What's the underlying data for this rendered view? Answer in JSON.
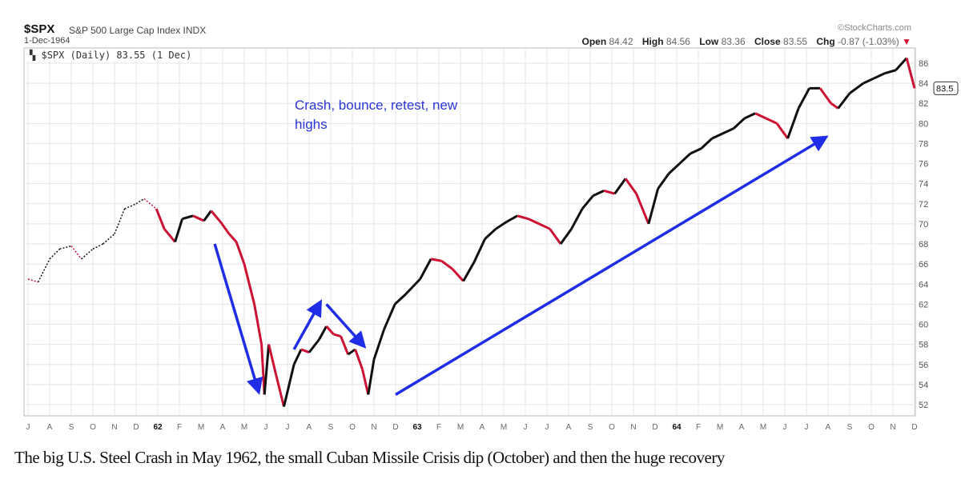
{
  "header": {
    "symbol": "$SPX",
    "name": "S&P 500 Large Cap Index  INDX",
    "date": "1-Dec-1964",
    "brand": "©StockCharts.com",
    "open_label": "Open",
    "open": "84.42",
    "high_label": "High",
    "high": "84.56",
    "low_label": "Low",
    "low": "83.36",
    "close_label": "Close",
    "close": "83.55",
    "chg_label": "Chg",
    "chg": "-0.87 (-1.03%)",
    "chg_icon": "triangle-down-icon"
  },
  "legend": "$SPX (Daily) 83.55 (1 Dec)",
  "annotation": "Crash, bounce, retest, new highs",
  "caption": "The big U.S.  Steel Crash in May 1962, the small Cuban Missile Crisis  dip (October)  and then the huge recovery",
  "colors": {
    "up": "#111111",
    "down": "#cc1133",
    "arrow": "#1f2ee6",
    "grid": "#e4e4e4",
    "note": "#2a35d8"
  },
  "chart_data": {
    "type": "line",
    "title": "$SPX S&P 500 Large Cap Index INDX",
    "ylim": [
      51,
      87
    ],
    "y_ticks": [
      52,
      54,
      56,
      58,
      60,
      62,
      64,
      66,
      68,
      70,
      72,
      74,
      76,
      78,
      80,
      82,
      84,
      86
    ],
    "y_axis_side": "right",
    "grid": true,
    "last_value_tag": "83.5",
    "x_tick_labels": [
      "J",
      "A",
      "S",
      "O",
      "N",
      "D",
      "62",
      "F",
      "M",
      "A",
      "M",
      "J",
      "J",
      "A",
      "S",
      "O",
      "N",
      "D",
      "63",
      "F",
      "M",
      "A",
      "M",
      "J",
      "J",
      "A",
      "S",
      "O",
      "N",
      "D",
      "64",
      "F",
      "M",
      "A",
      "M",
      "J",
      "J",
      "A",
      "S",
      "O",
      "N",
      "D"
    ],
    "series": [
      {
        "points": [
          [
            "1961-07-01",
            64.5
          ],
          [
            "1961-07-15",
            64.2
          ],
          [
            "1961-08-01",
            66.5
          ],
          [
            "1961-08-15",
            67.5
          ],
          [
            "1961-09-01",
            67.8
          ],
          [
            "1961-09-15",
            66.5
          ],
          [
            "1961-10-01",
            67.5
          ],
          [
            "1961-10-15",
            68
          ],
          [
            "1961-11-01",
            69
          ],
          [
            "1961-11-15",
            71.5
          ],
          [
            "1961-12-01",
            72
          ],
          [
            "1961-12-12",
            72.5
          ],
          [
            "1961-12-29",
            71.5
          ],
          [
            "1962-01-10",
            69.5
          ],
          [
            "1962-01-25",
            68.2
          ],
          [
            "1962-02-05",
            70.5
          ],
          [
            "1962-02-20",
            70.8
          ],
          [
            "1962-03-05",
            70.3
          ],
          [
            "1962-03-15",
            71.3
          ],
          [
            "1962-03-28",
            70.2
          ],
          [
            "1962-04-10",
            69
          ],
          [
            "1962-04-20",
            68.2
          ],
          [
            "1962-05-01",
            66
          ],
          [
            "1962-05-15",
            62
          ],
          [
            "1962-05-25",
            58
          ],
          [
            "1962-05-29",
            53
          ],
          [
            "1962-06-05",
            58
          ],
          [
            "1962-06-15",
            55
          ],
          [
            "1962-06-26",
            51.8
          ],
          [
            "1962-07-10",
            56
          ],
          [
            "1962-07-20",
            57.5
          ],
          [
            "1962-08-01",
            57.2
          ],
          [
            "1962-08-15",
            58.5
          ],
          [
            "1962-08-25",
            59.8
          ],
          [
            "1962-09-05",
            59
          ],
          [
            "1962-09-15",
            58.8
          ],
          [
            "1962-09-25",
            57
          ],
          [
            "1962-10-05",
            57.5
          ],
          [
            "1962-10-15",
            55.5
          ],
          [
            "1962-10-23",
            53
          ],
          [
            "1962-11-01",
            56.5
          ],
          [
            "1962-11-15",
            59.5
          ],
          [
            "1962-11-30",
            62
          ],
          [
            "1962-12-15",
            63
          ],
          [
            "1963-01-05",
            64.5
          ],
          [
            "1963-01-20",
            66.5
          ],
          [
            "1963-02-05",
            66.3
          ],
          [
            "1963-02-20",
            65.5
          ],
          [
            "1963-03-05",
            64.3
          ],
          [
            "1963-03-20",
            66.2
          ],
          [
            "1963-04-05",
            68.5
          ],
          [
            "1963-04-20",
            69.5
          ],
          [
            "1963-05-05",
            70.2
          ],
          [
            "1963-05-20",
            70.8
          ],
          [
            "1963-06-05",
            70.5
          ],
          [
            "1963-06-20",
            70
          ],
          [
            "1963-07-05",
            69.5
          ],
          [
            "1963-07-20",
            68
          ],
          [
            "1963-08-05",
            69.5
          ],
          [
            "1963-08-20",
            71.5
          ],
          [
            "1963-09-05",
            72.8
          ],
          [
            "1963-09-20",
            73.3
          ],
          [
            "1963-10-05",
            73
          ],
          [
            "1963-10-20",
            74.5
          ],
          [
            "1963-11-05",
            73
          ],
          [
            "1963-11-22",
            70
          ],
          [
            "1963-12-05",
            73.5
          ],
          [
            "1963-12-20",
            75
          ],
          [
            "1964-01-05",
            76
          ],
          [
            "1964-01-20",
            77
          ],
          [
            "1964-02-05",
            77.5
          ],
          [
            "1964-02-20",
            78.5
          ],
          [
            "1964-03-05",
            79
          ],
          [
            "1964-03-20",
            79.5
          ],
          [
            "1964-04-05",
            80.5
          ],
          [
            "1964-04-20",
            81
          ],
          [
            "1964-05-05",
            80.5
          ],
          [
            "1964-05-20",
            80
          ],
          [
            "1964-06-05",
            78.5
          ],
          [
            "1964-06-20",
            81.5
          ],
          [
            "1964-07-05",
            83.5
          ],
          [
            "1964-07-20",
            83.5
          ],
          [
            "1964-08-05",
            82
          ],
          [
            "1964-08-15",
            81.5
          ],
          [
            "1964-09-01",
            83
          ],
          [
            "1964-09-20",
            84
          ],
          [
            "1964-10-05",
            84.5
          ],
          [
            "1964-10-20",
            85
          ],
          [
            "1964-11-05",
            85.3
          ],
          [
            "1964-11-20",
            86.5
          ],
          [
            "1964-12-01",
            83.5
          ]
        ]
      }
    ],
    "annotations": [
      {
        "type": "arrow",
        "from": [
          "1962-03-20",
          68
        ],
        "to": [
          "1962-05-20",
          53.5
        ]
      },
      {
        "type": "arrow",
        "from": [
          "1962-07-10",
          57.5
        ],
        "to": [
          "1962-08-15",
          62
        ]
      },
      {
        "type": "arrow",
        "from": [
          "1962-08-25",
          62
        ],
        "to": [
          "1962-10-15",
          58
        ]
      },
      {
        "type": "arrow",
        "from": [
          "1962-12-01",
          53
        ],
        "to": [
          "1964-07-25",
          78.5
        ]
      }
    ]
  }
}
